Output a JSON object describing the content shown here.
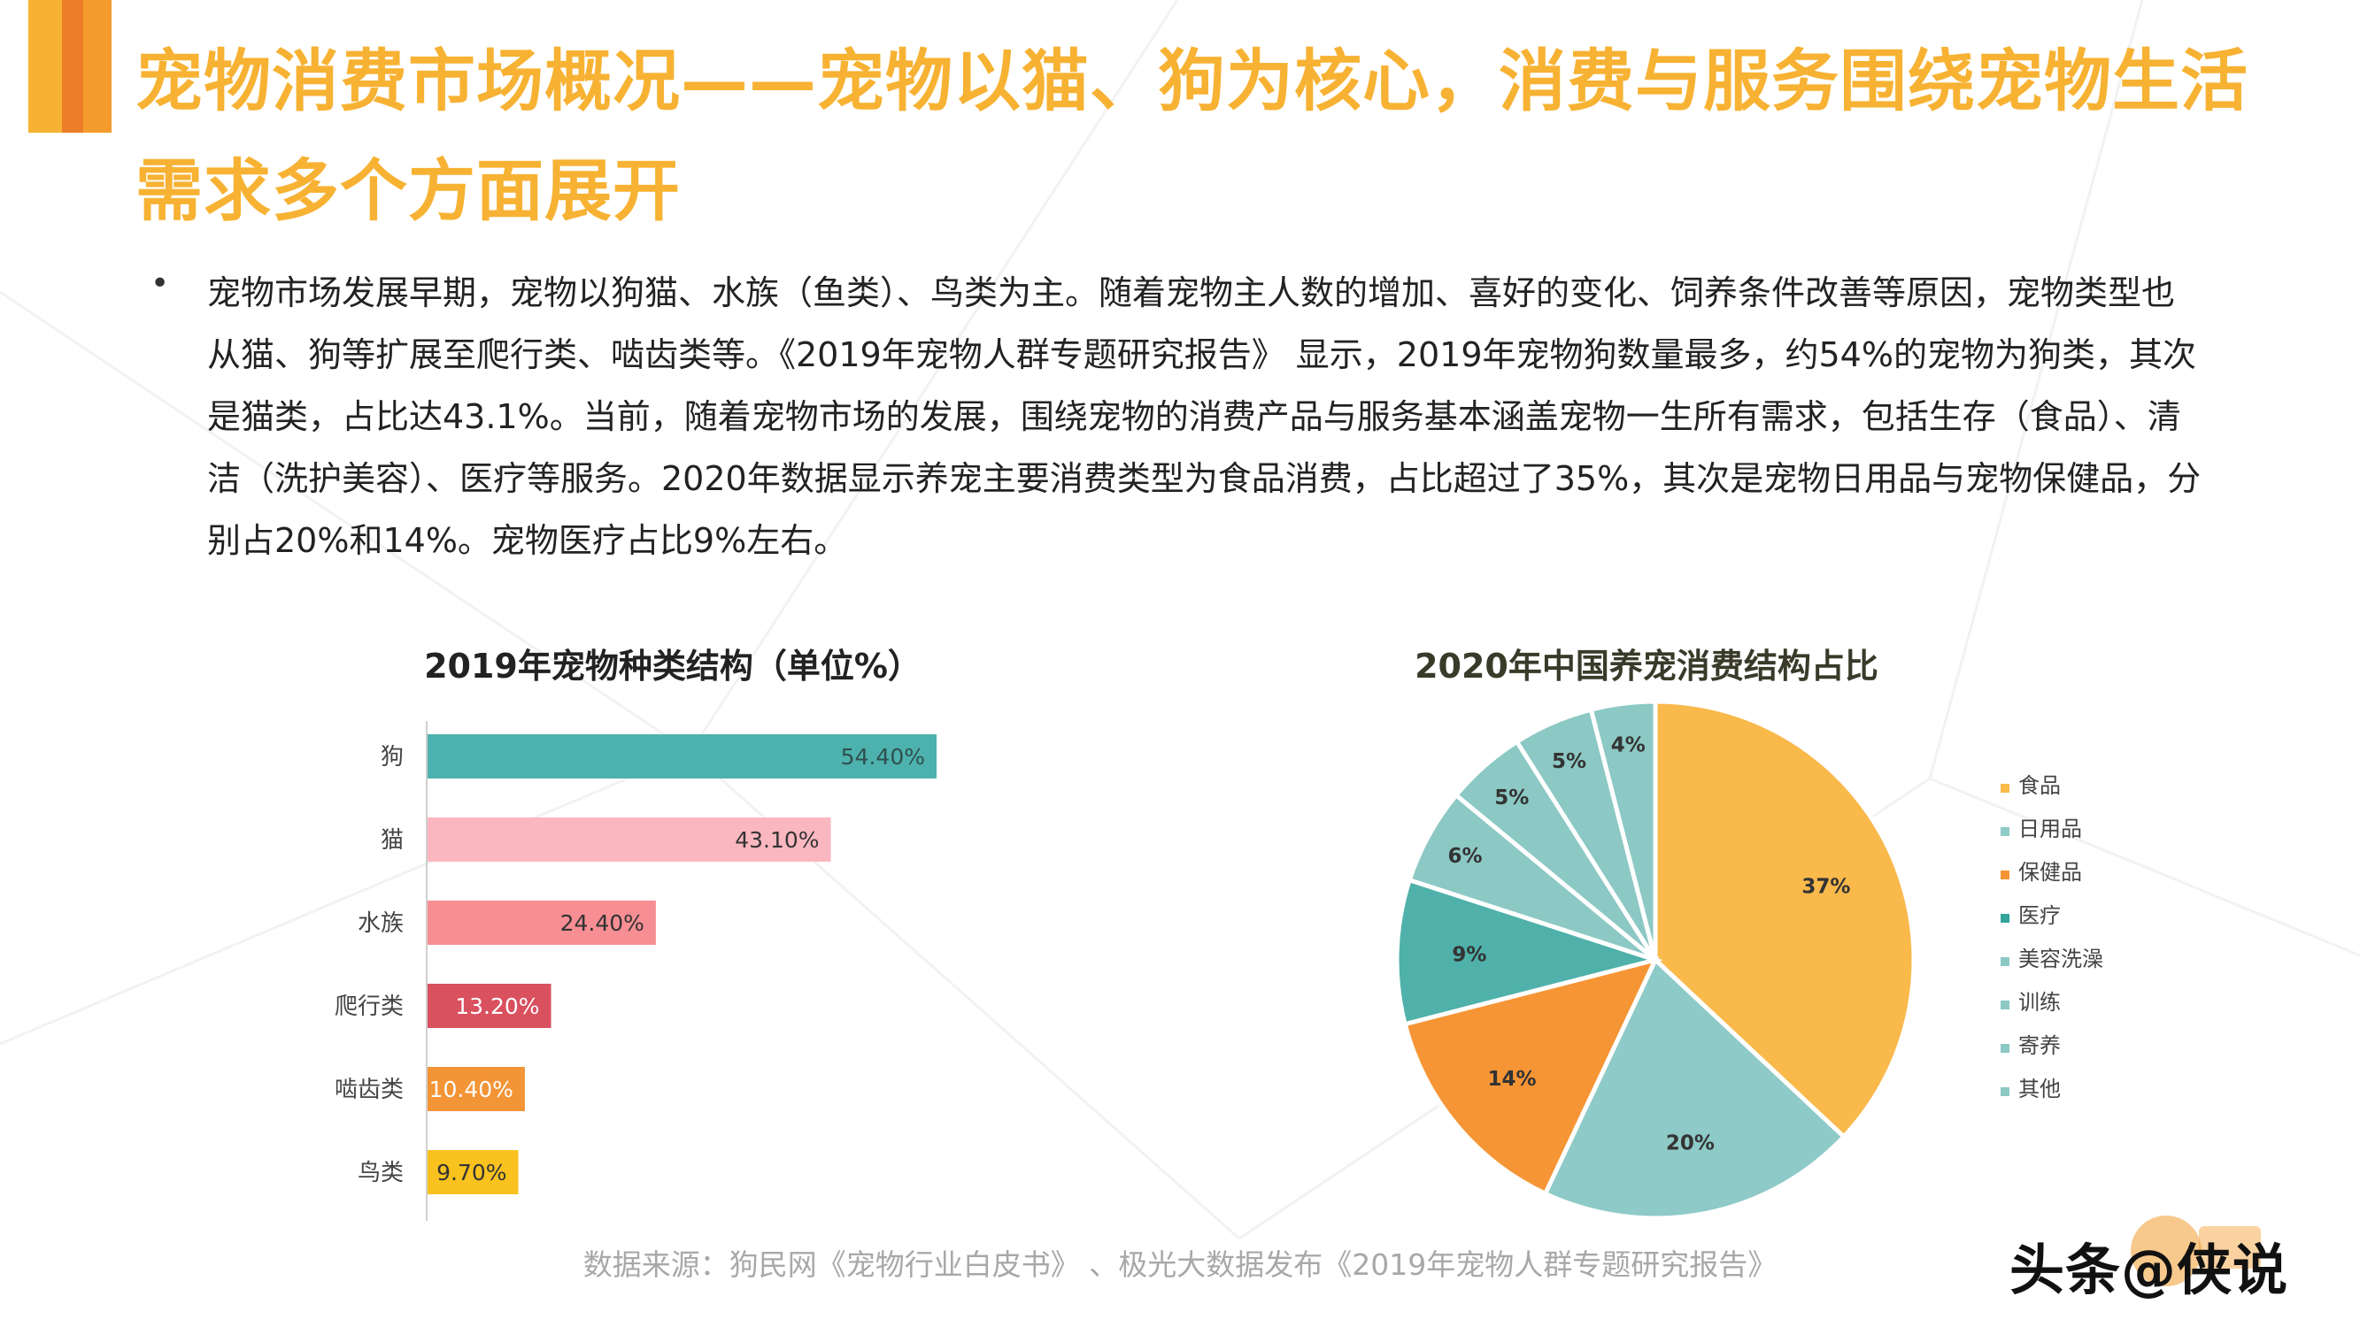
{
  "header": {
    "title": "宠物消费市场概况——宠物以猫、狗为核心，消费与服务围绕宠物生活需求多个方面展开"
  },
  "body": {
    "bullet": "•",
    "paragraph": "宠物市场发展早期，宠物以狗猫、水族（鱼类）、鸟类为主。随着宠物主人数的增加、喜好的变化、饲养条件改善等原因，宠物类型也从猫、狗等扩展至爬行类、啮齿类等。《2019年宠物人群专题研究报告》 显示，2019年宠物狗数量最多，约54%的宠物为狗类，其次是猫类，占比达43.1%。当前，随着宠物市场的发展，围绕宠物的消费产品与服务基本涵盖宠物一生所有需求，包括生存（食品）、清洁（洗护美容）、医疗等服务。2020年数据显示养宠主要消费类型为食品消费，占比超过了35%，其次是宠物日用品与宠物保健品，分别占20%和14%。宠物医疗占比9%左右。"
  },
  "source": "数据来源：狗民网《宠物行业白皮书》 、极光大数据发布《2019年宠物人群专题研究报告》",
  "watermark": "头条@侠说",
  "colors": {
    "title": "#f7b233",
    "accent_bar_1": "#f7b233",
    "accent_bar_2": "#ee7d2a",
    "accent_bar_3": "#f39c2d"
  },
  "chart_data": [
    {
      "type": "bar",
      "orientation": "horizontal",
      "title": "2019年宠物种类结构（单位%）",
      "categories": [
        "狗",
        "猫",
        "水族",
        "爬行类",
        "啮齿类",
        "鸟类"
      ],
      "values": [
        54.4,
        43.1,
        24.4,
        13.2,
        10.4,
        9.7
      ],
      "labels": [
        "54.40%",
        "43.10%",
        "24.40%",
        "13.20%",
        "10.40%",
        "9.70%"
      ],
      "colors": [
        "#4db2ad",
        "#fbb7c0",
        "#f78e93",
        "#d9505f",
        "#f39436",
        "#f9c21f"
      ],
      "label_colors": [
        "#2f4f4f",
        "#333333",
        "#333333",
        "#ffffff",
        "#ffffff",
        "#333333"
      ],
      "xlim": [
        0,
        60
      ]
    },
    {
      "type": "pie",
      "title": "2020年中国养宠消费结构占比",
      "legend_position": "right",
      "slices": [
        {
          "name": "食品",
          "value": 37,
          "label": "37%",
          "color": "#f9b94b"
        },
        {
          "name": "日用品",
          "value": 20,
          "label": "20%",
          "color": "#8ecac7"
        },
        {
          "name": "保健品",
          "value": 14,
          "label": "14%",
          "color": "#f69535"
        },
        {
          "name": "医疗",
          "value": 9,
          "label": "9%",
          "color": "#4fb1aa"
        },
        {
          "name": "美容洗澡",
          "value": 6,
          "label": "6%",
          "color": "#8cc8c4"
        },
        {
          "name": "训练",
          "value": 5,
          "label": "5%",
          "color": "#8cc8c4"
        },
        {
          "name": "寄养",
          "value": 5,
          "label": "5%",
          "color": "#8cc8c4"
        },
        {
          "name": "其他",
          "value": 4,
          "label": "4%",
          "color": "#8cc8c4"
        }
      ],
      "legend_marker_colors": [
        "#f9b94b",
        "#8ecac7",
        "#f69535",
        "#33a39b",
        "#8cc8c4",
        "#8cc8c4",
        "#8cc8c4",
        "#8cc8c4"
      ]
    }
  ]
}
